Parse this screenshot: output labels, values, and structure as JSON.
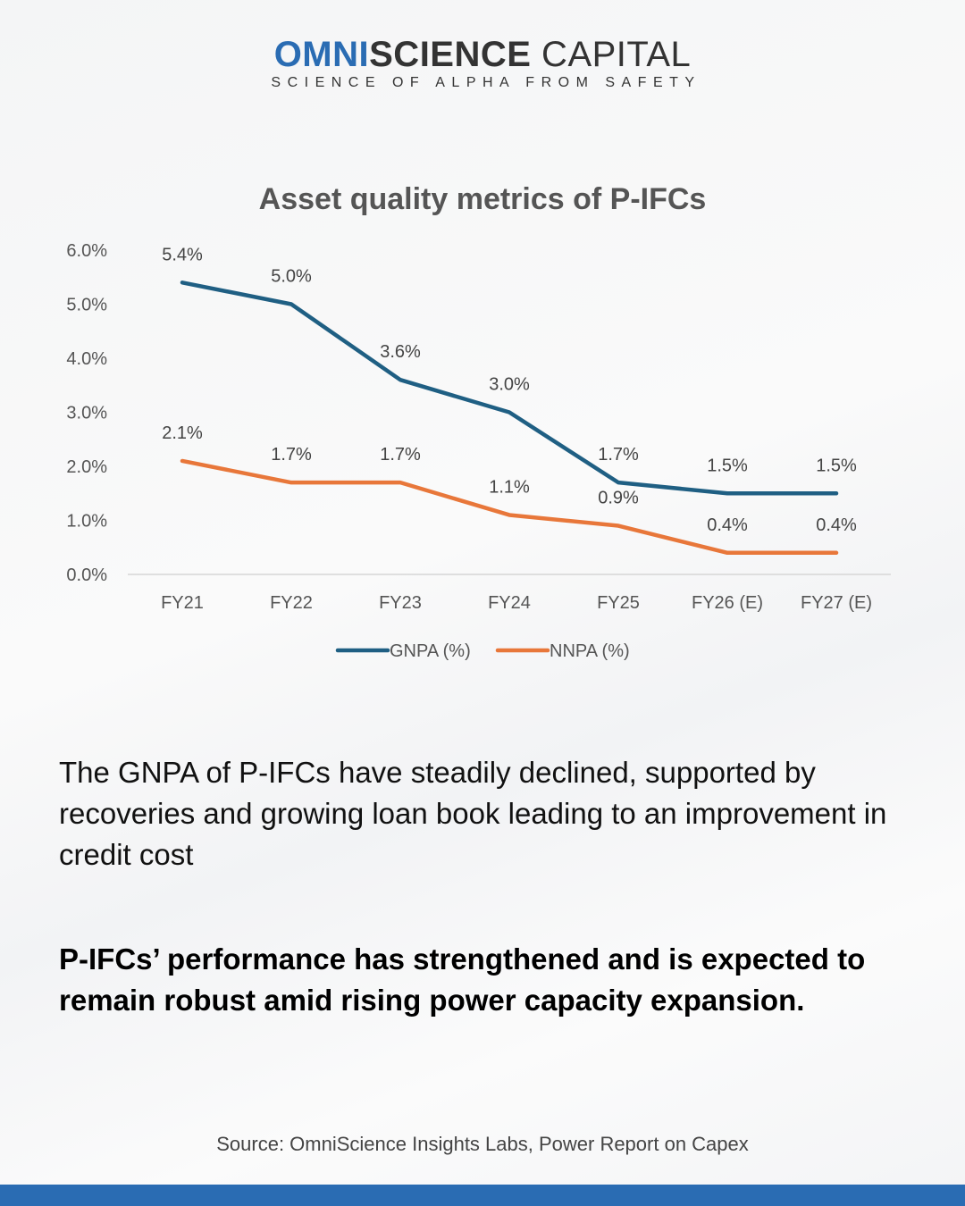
{
  "brand": {
    "name_part1": "OMNI",
    "name_part2": "SCIENCE",
    "name_part3": " CAPITAL",
    "tagline": "SCIENCE OF ALPHA FROM SAFETY",
    "accent_color": "#2a6cb3"
  },
  "chart_data": {
    "type": "line",
    "title": "Asset quality metrics of P-IFCs",
    "categories": [
      "FY21",
      "FY22",
      "FY23",
      "FY24",
      "FY25",
      "FY26 (E)",
      "FY27 (E)"
    ],
    "series": [
      {
        "name": "GNPA (%)",
        "color": "#1f5f83",
        "values": [
          5.4,
          5.0,
          3.6,
          3.0,
          1.7,
          1.5,
          1.5
        ],
        "labels": [
          "5.4%",
          "5.0%",
          "3.6%",
          "3.0%",
          "1.7%",
          "1.5%",
          "1.5%"
        ]
      },
      {
        "name": "NNPA (%)",
        "color": "#e8773a",
        "values": [
          2.1,
          1.7,
          1.7,
          1.1,
          0.9,
          0.4,
          0.4
        ],
        "labels": [
          "2.1%",
          "1.7%",
          "1.7%",
          "1.1%",
          "0.9%",
          "0.4%",
          "0.4%"
        ]
      }
    ],
    "ylim": [
      0,
      6
    ],
    "yticks": [
      0,
      1,
      2,
      3,
      4,
      5,
      6
    ],
    "ytick_labels": [
      "0.0%",
      "1.0%",
      "2.0%",
      "3.0%",
      "4.0%",
      "5.0%",
      "6.0%"
    ],
    "xlabel": "",
    "ylabel": "",
    "grid": false,
    "legend_position": "bottom-center"
  },
  "text": {
    "body": "The GNPA of P-IFCs have steadily declined, supported by recoveries and growing loan book leading to an improvement in credit cost",
    "highlight": "P-IFCs’ performance has strengthened and is expected to remain robust amid rising power capacity expansion.",
    "source": "Source: OmniScience Insights Labs, Power Report on Capex"
  }
}
